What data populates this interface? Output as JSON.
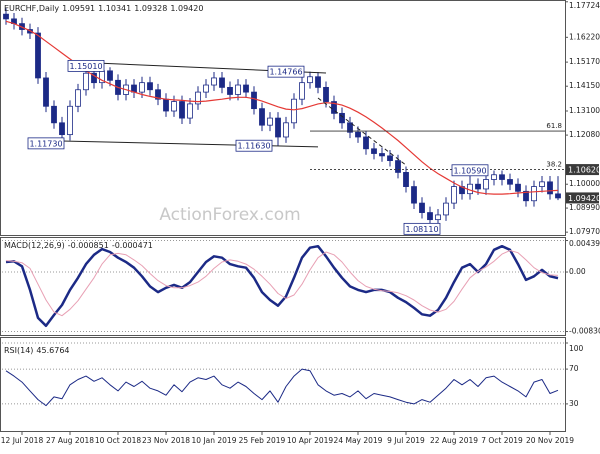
{
  "chart_data": [
    {
      "type": "candlestick",
      "title": "EURCHF,Daily",
      "categories": [
        null,
        null,
        "12 Jul 2018",
        null,
        null,
        null,
        null,
        null,
        "27 Aug 2018",
        null,
        null,
        null,
        null,
        null,
        "10 Oct 2018",
        null,
        null,
        null,
        null,
        null,
        "23 Nov 2018",
        null,
        null,
        null,
        null,
        null,
        "10 Jan 2019",
        null,
        null,
        null,
        null,
        null,
        "25 Feb 2019",
        null,
        null,
        null,
        null,
        null,
        "10 Apr 2019",
        null,
        null,
        null,
        null,
        null,
        "24 May 2019",
        null,
        null,
        null,
        null,
        null,
        "9 Jul 2019",
        null,
        null,
        null,
        null,
        null,
        "22 Aug 2019",
        null,
        null,
        null,
        null,
        null,
        "7 Oct 2019",
        null,
        null,
        null,
        null,
        null,
        "20 Nov 2019",
        null
      ],
      "open": [
        1.172,
        1.17,
        1.168,
        1.1655,
        1.164,
        1.145,
        1.133,
        1.126,
        1.121,
        1.133,
        1.14,
        1.147,
        1.143,
        1.148,
        1.144,
        1.138,
        1.142,
        1.139,
        1.143,
        1.14,
        1.136,
        1.131,
        1.135,
        1.128,
        1.134,
        1.139,
        1.142,
        1.145,
        1.141,
        1.138,
        1.142,
        1.139,
        1.132,
        1.125,
        1.128,
        1.12,
        1.126,
        1.136,
        1.143,
        1.1455,
        1.141,
        1.135,
        1.13,
        1.126,
        1.122,
        1.12,
        1.115,
        1.113,
        1.112,
        1.11,
        1.105,
        1.099,
        1.092,
        1.088,
        1.085,
        1.087,
        1.092,
        1.099,
        1.096,
        1.1,
        1.098,
        1.102,
        1.104,
        1.102,
        1.1,
        1.097,
        1.093,
        1.099,
        1.101,
        1.09591
      ],
      "high": [
        1.1745,
        1.1725,
        1.1705,
        1.168,
        1.1665,
        1.1475,
        1.1355,
        1.1285,
        1.1355,
        1.1425,
        1.1495,
        1.1495,
        1.1501,
        1.1495,
        1.1465,
        1.1445,
        1.1445,
        1.1455,
        1.1455,
        1.1425,
        1.1385,
        1.1375,
        1.1375,
        1.1365,
        1.1415,
        1.1445,
        1.1475,
        1.1475,
        1.1435,
        1.1445,
        1.1445,
        1.1415,
        1.1345,
        1.1305,
        1.1305,
        1.1285,
        1.1385,
        1.1455,
        1.1477,
        1.1475,
        1.1435,
        1.1375,
        1.1325,
        1.1285,
        1.1245,
        1.1225,
        1.1175,
        1.1155,
        1.1145,
        1.1125,
        1.1075,
        1.1015,
        1.0945,
        1.0905,
        1.0895,
        1.0945,
        1.1015,
        1.1015,
        1.1059,
        1.1025,
        1.1045,
        1.1058,
        1.1058,
        1.1045,
        1.1025,
        1.0995,
        1.1015,
        1.1035,
        1.1035,
        1.10341
      ],
      "low": [
        1.1675,
        1.1655,
        1.163,
        1.1615,
        1.1425,
        1.1305,
        1.1235,
        1.1173,
        1.1185,
        1.1305,
        1.1375,
        1.1405,
        1.1405,
        1.1415,
        1.1355,
        1.1355,
        1.1365,
        1.1365,
        1.1375,
        1.1335,
        1.1285,
        1.1285,
        1.1255,
        1.1255,
        1.1315,
        1.1365,
        1.1395,
        1.1385,
        1.1355,
        1.1355,
        1.1365,
        1.1295,
        1.1225,
        1.1225,
        1.1163,
        1.1175,
        1.1235,
        1.1335,
        1.1405,
        1.1385,
        1.1325,
        1.1275,
        1.1235,
        1.1195,
        1.1175,
        1.1125,
        1.1105,
        1.1095,
        1.1075,
        1.1025,
        1.0965,
        1.0895,
        1.0855,
        1.0811,
        1.0825,
        1.0845,
        1.0895,
        1.0935,
        1.0935,
        1.0955,
        1.0955,
        1.0995,
        1.0995,
        1.0975,
        1.0945,
        1.0905,
        1.0905,
        1.0965,
        1.0935,
        1.09328
      ],
      "close": [
        1.17,
        1.168,
        1.1655,
        1.164,
        1.145,
        1.133,
        1.126,
        1.121,
        1.133,
        1.14,
        1.147,
        1.143,
        1.148,
        1.144,
        1.138,
        1.142,
        1.139,
        1.143,
        1.14,
        1.136,
        1.131,
        1.135,
        1.128,
        1.134,
        1.139,
        1.142,
        1.145,
        1.141,
        1.138,
        1.142,
        1.139,
        1.132,
        1.125,
        1.128,
        1.12,
        1.126,
        1.136,
        1.143,
        1.1455,
        1.141,
        1.135,
        1.13,
        1.126,
        1.122,
        1.12,
        1.115,
        1.113,
        1.112,
        1.11,
        1.105,
        1.099,
        1.092,
        1.088,
        1.085,
        1.087,
        1.092,
        1.099,
        1.096,
        1.1,
        1.098,
        1.102,
        1.104,
        1.102,
        1.1,
        1.097,
        1.093,
        1.099,
        1.101,
        1.09591,
        1.0942
      ],
      "color": "#1c2a86",
      "overlays": [
        {
          "color": "#e53935",
          "values": [
            1.169,
            1.168,
            1.1665,
            1.165,
            1.163,
            1.1605,
            1.158,
            1.1555,
            1.153,
            1.1505,
            1.148,
            1.146,
            1.144,
            1.1425,
            1.141,
            1.14,
            1.139,
            1.138,
            1.1372,
            1.1365,
            1.136,
            1.1357,
            1.1355,
            1.1352,
            1.135,
            1.1352,
            1.1356,
            1.136,
            1.1365,
            1.1368,
            1.1368,
            1.1362,
            1.1352,
            1.134,
            1.1328,
            1.1318,
            1.1315,
            1.132,
            1.133,
            1.134,
            1.1345,
            1.1342,
            1.1335,
            1.1322,
            1.1305,
            1.1285,
            1.1262,
            1.1238,
            1.1212,
            1.1185,
            1.1155,
            1.1125,
            1.1095,
            1.1068,
            1.1045,
            1.1025,
            1.1005,
            1.0988,
            1.0975,
            1.0965,
            1.096,
            1.0958,
            1.0958,
            1.096,
            1.0963,
            1.0966,
            1.0968,
            1.097,
            1.0972,
            1.0974
          ]
        }
      ],
      "ylim": [
        1.0785,
        1.178
      ],
      "yticks": [
        1.17724,
        {
          "value": 1.1622,
          "label": "1.16220"
        },
        {
          "value": 1.1517,
          "label": "1.15170"
        },
        {
          "value": 1.1415,
          "label": "1.14150"
        },
        {
          "value": 1.131,
          "label": "1.13100"
        },
        {
          "value": 1.1208,
          "label": "1.12080"
        },
        {
          "value": 1.1,
          "label": "1.10000"
        },
        {
          "value": 1.0899,
          "label": "1.08990"
        },
        {
          "value": 1.0797,
          "label": "1.07970"
        }
      ],
      "price_markers": [
        {
          "value": 1.1062,
          "label": "1.10620"
        },
        {
          "value": 1.0942,
          "label": "1.09420"
        }
      ],
      "annotations": [
        {
          "value": 1.1501,
          "label": "1.15010",
          "index": 10
        },
        {
          "value": 1.14766,
          "label": "1.14766",
          "index": 35
        },
        {
          "value": 1.1173,
          "label": "1.11730",
          "index": 5
        },
        {
          "value": 1.1163,
          "label": "1.11630",
          "index": 31
        },
        {
          "value": 1.1059,
          "label": "1.10590",
          "index": 58
        },
        {
          "value": 1.0811,
          "label": "1.08110",
          "index": 52
        }
      ],
      "trendlines": [
        {
          "from": [
            8,
            1.1518
          ],
          "to": [
            40,
            1.1471
          ],
          "dash": false
        },
        {
          "from": [
            7,
            1.1183
          ],
          "to": [
            39,
            1.1158
          ],
          "dash": false
        },
        {
          "from": [
            39,
            1.1365
          ],
          "to": [
            50,
            1.1081
          ],
          "dash": true
        }
      ],
      "fib_levels": [
        {
          "label": "61.8",
          "value": 1.1225,
          "from": 38,
          "dash": false
        },
        {
          "label": "38.2",
          "value": 1.1062,
          "from": 38,
          "dash": true
        }
      ],
      "watermark": "ActionForex.com"
    },
    {
      "type": "line",
      "title": "MACD(12,26,9)",
      "series": [
        {
          "color": "#1c2a86",
          "width": 2.5,
          "values": [
            0.0014,
            0.0015,
            0.0008,
            -0.0025,
            -0.0064,
            -0.0075,
            -0.006,
            -0.0046,
            -0.0025,
            -0.0008,
            0.0011,
            0.0024,
            0.0032,
            0.0028,
            0.002,
            0.0014,
            0.0006,
            -0.0006,
            -0.002,
            -0.0028,
            -0.0022,
            -0.0018,
            -0.0022,
            -0.0014,
            0.0,
            0.0014,
            0.0022,
            0.002,
            0.0011,
            0.0008,
            0.0006,
            -0.0008,
            -0.0028,
            -0.0039,
            -0.0047,
            -0.0034,
            -0.0008,
            0.002,
            0.0034,
            0.0036,
            0.0022,
            0.0006,
            -0.0008,
            -0.002,
            -0.0025,
            -0.0028,
            -0.0025,
            -0.0025,
            -0.0028,
            -0.0036,
            -0.0042,
            -0.005,
            -0.0059,
            -0.0061,
            -0.0053,
            -0.0036,
            -0.0014,
            0.0006,
            0.0011,
            0.0,
            0.0011,
            0.0031,
            0.0036,
            0.0031,
            0.0011,
            -0.0011,
            -0.0006,
            0.0003,
            -0.0006,
            -0.000851
          ]
        },
        {
          "color": "#e8a0b4",
          "width": 1,
          "values": [
            0.0016,
            0.0015,
            0.0013,
            0.0005,
            -0.0017,
            -0.0039,
            -0.0056,
            -0.0061,
            -0.0052,
            -0.004,
            -0.0024,
            -0.0008,
            0.0011,
            0.0024,
            0.0026,
            0.0024,
            0.0017,
            0.0009,
            -0.0002,
            -0.0012,
            -0.0019,
            -0.0022,
            -0.0022,
            -0.0019,
            -0.0014,
            -0.0006,
            0.0005,
            0.0014,
            0.0017,
            0.0015,
            0.0011,
            0.0004,
            -0.0006,
            -0.0017,
            -0.003,
            -0.0037,
            -0.0032,
            -0.0017,
            0.0003,
            0.002,
            0.0028,
            0.0024,
            0.0014,
            0.0,
            -0.0012,
            -0.002,
            -0.0024,
            -0.0026,
            -0.0027,
            -0.0029,
            -0.0033,
            -0.0039,
            -0.0047,
            -0.0053,
            -0.0056,
            -0.0052,
            -0.0041,
            -0.0024,
            -0.0008,
            0.0001,
            0.0007,
            0.0015,
            0.0025,
            0.003,
            0.0027,
            0.0017,
            0.0006,
            -0.0001,
            -0.0004,
            -0.000471
          ]
        }
      ],
      "ylim": [
        -0.00865,
        0.00475
      ],
      "yticks": [
        0.004398,
        {
          "value": 0,
          "label": "0.00"
        },
        -0.008306
      ],
      "grid": "dotted"
    },
    {
      "type": "line",
      "title": "RSI(14)",
      "series": [
        {
          "color": "#1c2a86",
          "width": 1,
          "values": [
            68,
            62,
            55,
            45,
            35,
            28,
            38,
            36,
            52,
            58,
            62,
            56,
            60,
            52,
            45,
            55,
            50,
            56,
            48,
            45,
            40,
            52,
            44,
            55,
            60,
            58,
            62,
            52,
            48,
            55,
            50,
            42,
            35,
            45,
            32,
            50,
            62,
            70,
            68,
            52,
            45,
            40,
            42,
            38,
            45,
            36,
            42,
            40,
            38,
            35,
            32,
            30,
            35,
            32,
            40,
            48,
            58,
            52,
            58,
            50,
            60,
            62,
            55,
            50,
            45,
            38,
            55,
            58,
            42,
            45.6764
          ]
        }
      ],
      "ylim": [
        0,
        100
      ],
      "yticks": [
        100,
        70,
        30
      ],
      "grid": "dotted"
    }
  ]
}
